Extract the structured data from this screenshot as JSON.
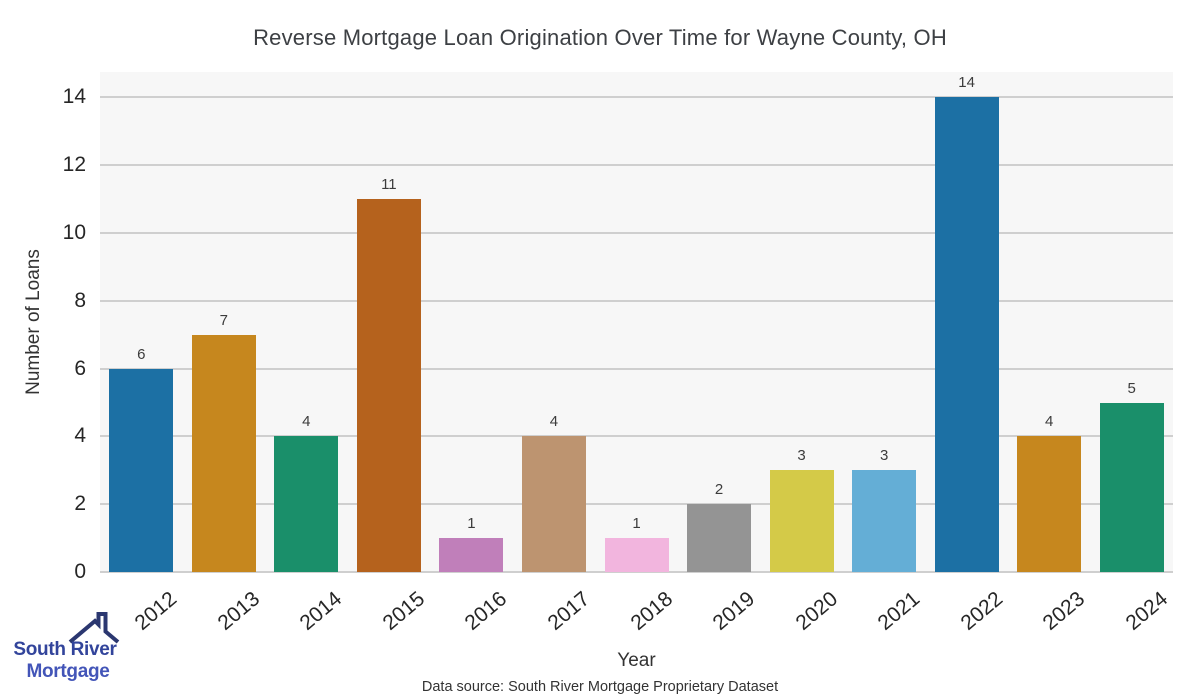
{
  "chart_data": {
    "type": "bar",
    "title": "Reverse Mortgage Loan Origination Over Time for Wayne County, OH",
    "xlabel": "Year",
    "ylabel": "Number of Loans",
    "categories": [
      "2012",
      "2013",
      "2014",
      "2015",
      "2016",
      "2017",
      "2018",
      "2019",
      "2020",
      "2021",
      "2022",
      "2023",
      "2024"
    ],
    "values": [
      6,
      7,
      4,
      11,
      1,
      4,
      1,
      2,
      3,
      3,
      14,
      4,
      5
    ],
    "bar_colors": [
      "#1c70a4",
      "#c6871e",
      "#1a8f6a",
      "#b5621d",
      "#c07fba",
      "#bd9470",
      "#f2b5de",
      "#949494",
      "#d4ca48",
      "#64aed6",
      "#1c70a4",
      "#c6871e",
      "#1a8f6a"
    ],
    "yticks": [
      0,
      2,
      4,
      6,
      8,
      10,
      12,
      14
    ],
    "ylim": [
      0,
      14.75
    ],
    "grid": "horizontal",
    "legend": "none",
    "plot_background": "#f7f7f7",
    "gridline_color": "#cfcfcf"
  },
  "footer": {
    "text": "Data source: South River Mortgage Proprietary Dataset"
  },
  "logo": {
    "line1": "South River",
    "line2": "Mortgage",
    "line1_color": "#32449b",
    "line2_color": "#4355b8",
    "roof_color": "#2b3770"
  }
}
